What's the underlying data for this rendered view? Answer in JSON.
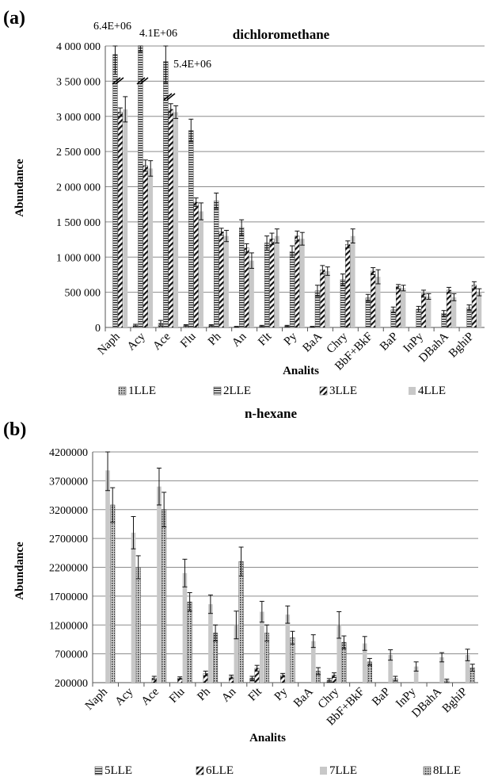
{
  "chart_data": [
    {
      "type": "bar",
      "panel": "(a)",
      "title": "dichloromethane",
      "xlabel": "Analits",
      "ylabel": "Abundance",
      "ylim": [
        0,
        4000000
      ],
      "yticks": [
        0,
        500000,
        1000000,
        1500000,
        2000000,
        2500000,
        3000000,
        3500000,
        4000000
      ],
      "ytick_labels": [
        "0",
        "500 000",
        "1 000 000",
        "1 500 000",
        "2 000 000",
        "2 500 000",
        "3 000 000",
        "3 500 000",
        "4 000 000"
      ],
      "grid": true,
      "legend_position": "bottom",
      "categories": [
        "Naph",
        "Acy",
        "Ace",
        "Flu",
        "Ph",
        "An",
        "Flt",
        "Py",
        "BaA",
        "Chry",
        "BbF+BkF",
        "BaP",
        "InPy",
        "DBahA",
        "BghiP"
      ],
      "series": [
        {
          "name": "1LLE",
          "pattern": "dots",
          "values": [
            0,
            30000,
            60000,
            30000,
            30000,
            10000,
            20000,
            20000,
            10000,
            0,
            0,
            0,
            0,
            0,
            0
          ],
          "errors": [
            0,
            15000,
            40000,
            10000,
            10000,
            5000,
            10000,
            10000,
            5000,
            0,
            0,
            0,
            0,
            0,
            0
          ]
        },
        {
          "name": "2LLE",
          "pattern": "hstripes",
          "values": [
            3880000,
            4000000,
            3780000,
            2800000,
            1800000,
            1420000,
            1200000,
            1080000,
            520000,
            680000,
            420000,
            250000,
            260000,
            200000,
            280000
          ],
          "errors": [
            280000,
            80000,
            300000,
            160000,
            110000,
            110000,
            100000,
            80000,
            80000,
            80000,
            50000,
            40000,
            40000,
            40000,
            40000
          ]
        },
        {
          "name": "3LLE",
          "pattern": "diag",
          "values": [
            3060000,
            2300000,
            3100000,
            1780000,
            1360000,
            1130000,
            1260000,
            1300000,
            820000,
            1180000,
            800000,
            580000,
            480000,
            530000,
            600000
          ],
          "errors": [
            60000,
            80000,
            80000,
            60000,
            50000,
            60000,
            80000,
            70000,
            60000,
            50000,
            50000,
            30000,
            50000,
            40000,
            50000
          ]
        },
        {
          "name": "4LLE",
          "pattern": "solid",
          "values": [
            3100000,
            2260000,
            3060000,
            1650000,
            1300000,
            950000,
            1300000,
            1260000,
            800000,
            1300000,
            720000,
            560000,
            440000,
            430000,
            500000
          ],
          "errors": [
            180000,
            110000,
            90000,
            120000,
            80000,
            110000,
            100000,
            90000,
            60000,
            100000,
            100000,
            40000,
            40000,
            50000,
            50000
          ]
        }
      ],
      "annotations": [
        "6.4E+06",
        "4.1E+06",
        "5.4E+06"
      ]
    },
    {
      "type": "bar",
      "panel": "(b)",
      "title": "n-hexane",
      "xlabel": "Analits",
      "ylabel": "Abundance",
      "ylim": [
        200000,
        4200000
      ],
      "yticks": [
        200000,
        700000,
        1200000,
        1700000,
        2200000,
        2700000,
        3200000,
        3700000,
        4200000
      ],
      "ytick_labels": [
        "200000",
        "700000",
        "1200000",
        "1700000",
        "2200000",
        "2700000",
        "3200000",
        "3700000",
        "4200000"
      ],
      "grid": true,
      "legend_position": "bottom",
      "categories": [
        "Naph",
        "Acy",
        "Ace",
        "Flu",
        "Ph",
        "An",
        "Flt",
        "Py",
        "BaA",
        "Chry",
        "BbF+BkF",
        "BaP",
        "InPy",
        "DBahA",
        "BghiP"
      ],
      "series": [
        {
          "name": "5LLE",
          "pattern": "hstripes",
          "values": [
            0,
            0,
            0,
            0,
            0,
            0,
            280000,
            0,
            0,
            240000,
            0,
            0,
            0,
            0,
            0
          ],
          "errors": [
            0,
            0,
            0,
            0,
            0,
            0,
            30000,
            0,
            0,
            30000,
            0,
            0,
            0,
            0,
            0
          ]
        },
        {
          "name": "6LLE",
          "pattern": "diag",
          "values": [
            0,
            0,
            280000,
            280000,
            360000,
            300000,
            450000,
            330000,
            0,
            330000,
            0,
            0,
            0,
            0,
            0
          ],
          "errors": [
            0,
            0,
            30000,
            20000,
            40000,
            30000,
            50000,
            30000,
            0,
            40000,
            0,
            0,
            0,
            0,
            0
          ]
        },
        {
          "name": "7LLE",
          "pattern": "solid",
          "values": [
            3880000,
            2800000,
            3600000,
            2100000,
            1560000,
            1200000,
            1430000,
            1380000,
            920000,
            1200000,
            880000,
            680000,
            480000,
            640000,
            680000
          ],
          "errors": [
            350000,
            280000,
            320000,
            240000,
            160000,
            240000,
            180000,
            150000,
            110000,
            230000,
            120000,
            90000,
            80000,
            80000,
            100000
          ]
        },
        {
          "name": "8LLE",
          "pattern": "dots",
          "values": [
            3280000,
            2200000,
            3200000,
            1600000,
            1060000,
            2300000,
            1060000,
            980000,
            400000,
            900000,
            560000,
            270000,
            0,
            230000,
            460000
          ],
          "errors": [
            300000,
            200000,
            300000,
            160000,
            140000,
            250000,
            140000,
            110000,
            60000,
            110000,
            60000,
            40000,
            0,
            30000,
            60000
          ]
        }
      ],
      "annotations": []
    }
  ]
}
